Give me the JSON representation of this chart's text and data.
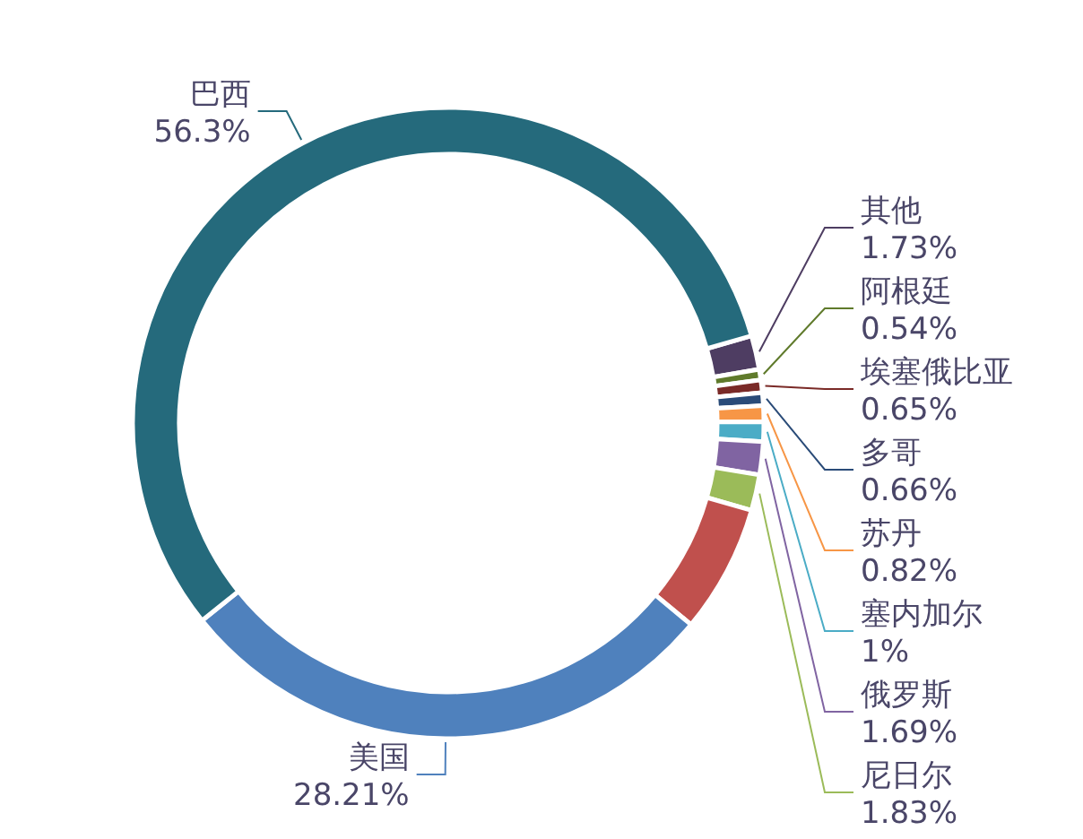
{
  "chart_data": {
    "type": "donut",
    "categories": [
      "其他",
      "阿根廷",
      "埃塞俄比亚",
      "多哥",
      "苏丹",
      "塞内加尔",
      "俄罗斯",
      "尼日尔",
      null,
      "美国",
      "巴西"
    ],
    "values": [
      1.73,
      0.54,
      0.65,
      0.66,
      0.82,
      1,
      1.69,
      1.83,
      6.57,
      28.21,
      56.3
    ],
    "value_labels": [
      "1.73%",
      "0.54%",
      "0.65%",
      "0.66%",
      "0.82%",
      "1%",
      "1.69%",
      "1.83%",
      null,
      "28.21%",
      "56.3%"
    ],
    "colors": [
      "#4e3d62",
      "#5f7a2b",
      "#7a2a27",
      "#2a4b78",
      "#f79646",
      "#4bacc6",
      "#8064a2",
      "#9bbb59",
      "#c0504d",
      "#4f81bd",
      "#256a7c"
    ],
    "legend": false
  }
}
